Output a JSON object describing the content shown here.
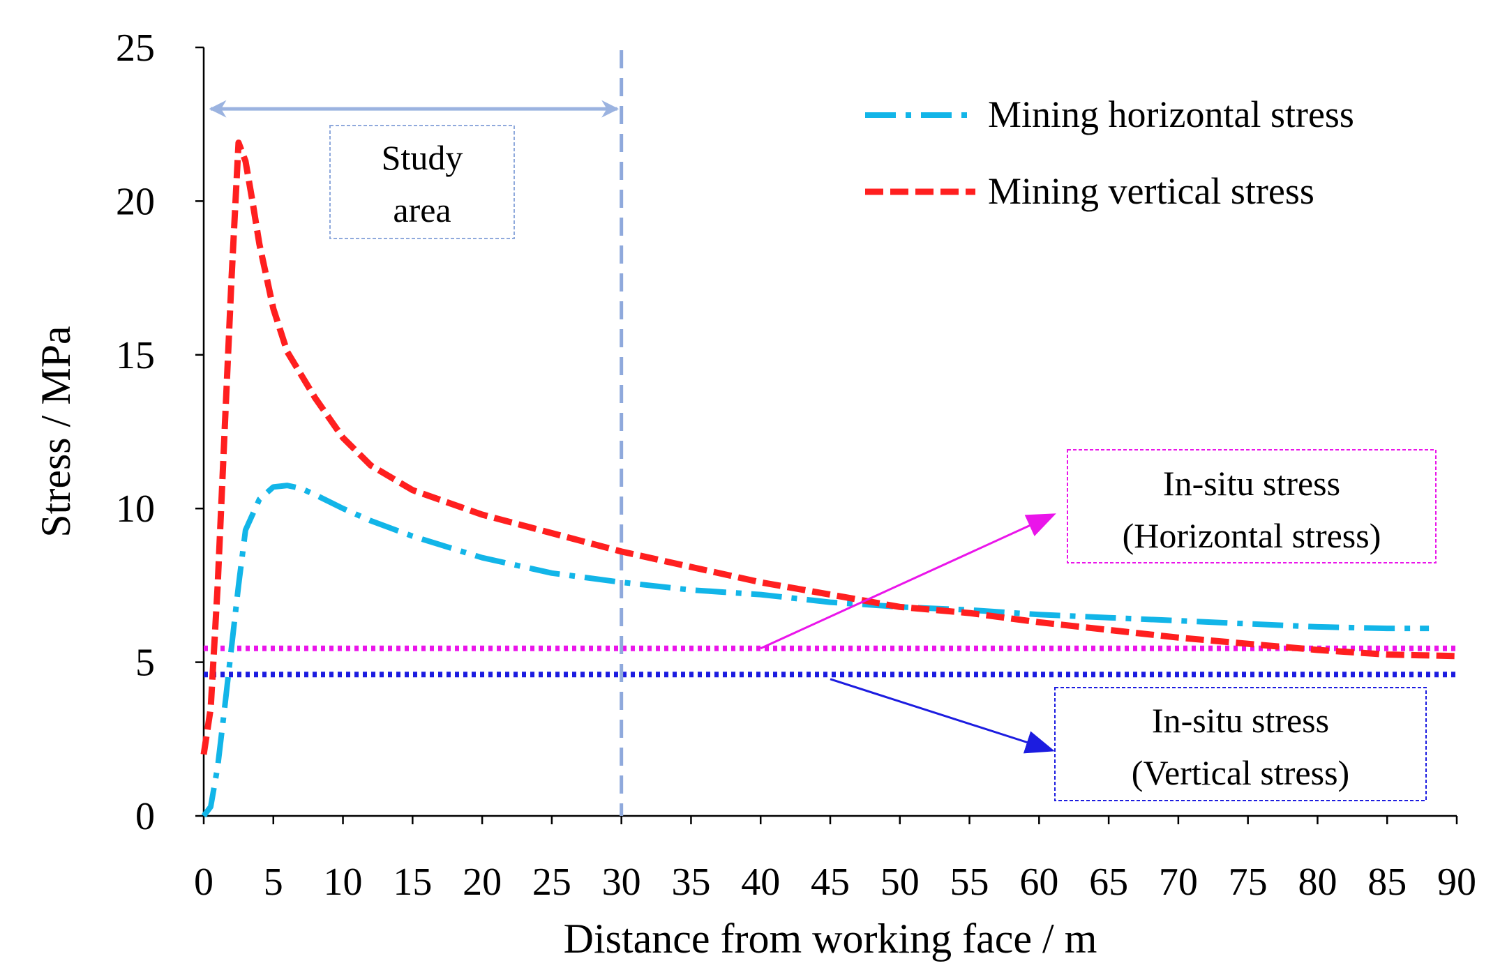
{
  "chart_data": {
    "type": "line",
    "xlabel": "Distance from working face / m",
    "ylabel": "Stress / MPa",
    "xlim": [
      0,
      90
    ],
    "ylim": [
      0,
      25
    ],
    "x_ticks": [
      0,
      5,
      10,
      15,
      20,
      25,
      30,
      35,
      40,
      45,
      50,
      55,
      60,
      65,
      70,
      75,
      80,
      85,
      90
    ],
    "y_ticks": [
      0,
      5,
      10,
      15,
      20,
      25
    ],
    "legend_position": "top-right",
    "series": [
      {
        "name": "Mining horizontal stress",
        "style": "dash-dot",
        "color": "#12b5e8",
        "points": [
          [
            0,
            0
          ],
          [
            0.5,
            0.3
          ],
          [
            1,
            1.6
          ],
          [
            1.5,
            3.5
          ],
          [
            2,
            5.5
          ],
          [
            2.5,
            7.5
          ],
          [
            3,
            9.3
          ],
          [
            4,
            10.3
          ],
          [
            5,
            10.7
          ],
          [
            6,
            10.75
          ],
          [
            7,
            10.65
          ],
          [
            8,
            10.45
          ],
          [
            10,
            10.0
          ],
          [
            12,
            9.6
          ],
          [
            15,
            9.1
          ],
          [
            20,
            8.4
          ],
          [
            25,
            7.9
          ],
          [
            30,
            7.6
          ],
          [
            35,
            7.35
          ],
          [
            40,
            7.2
          ],
          [
            45,
            6.95
          ],
          [
            50,
            6.8
          ],
          [
            55,
            6.7
          ],
          [
            60,
            6.55
          ],
          [
            65,
            6.45
          ],
          [
            70,
            6.35
          ],
          [
            75,
            6.25
          ],
          [
            80,
            6.15
          ],
          [
            85,
            6.1
          ],
          [
            88,
            6.1
          ]
        ]
      },
      {
        "name": "Mining vertical stress",
        "style": "dashed",
        "color": "#ff1f1f",
        "points": [
          [
            0,
            2.0
          ],
          [
            0.5,
            3.5
          ],
          [
            1,
            7.5
          ],
          [
            1.5,
            12.5
          ],
          [
            2,
            17.5
          ],
          [
            2.5,
            21.9
          ],
          [
            3,
            21.3
          ],
          [
            3.5,
            20.0
          ],
          [
            4,
            18.6
          ],
          [
            5,
            16.5
          ],
          [
            6,
            15.1
          ],
          [
            8,
            13.6
          ],
          [
            10,
            12.3
          ],
          [
            12,
            11.4
          ],
          [
            15,
            10.6
          ],
          [
            20,
            9.8
          ],
          [
            25,
            9.2
          ],
          [
            30,
            8.6
          ],
          [
            35,
            8.1
          ],
          [
            40,
            7.6
          ],
          [
            45,
            7.2
          ],
          [
            50,
            6.8
          ],
          [
            55,
            6.6
          ],
          [
            60,
            6.3
          ],
          [
            65,
            6.05
          ],
          [
            70,
            5.8
          ],
          [
            75,
            5.6
          ],
          [
            80,
            5.4
          ],
          [
            85,
            5.25
          ],
          [
            90,
            5.2
          ]
        ]
      }
    ],
    "reference_lines": [
      {
        "name": "In-situ horizontal stress",
        "value": 5.45,
        "color": "#ea15ea"
      },
      {
        "name": "In-situ vertical stress",
        "value": 4.6,
        "color": "#1c1ce0"
      }
    ],
    "boundary_x": 30,
    "boundary_color": "#8fa9dc",
    "annotations": {
      "study_area": {
        "line1": "Study",
        "line2": "area",
        "from_x": 0,
        "to_x": 30,
        "y": 23
      },
      "insitu_horizontal": {
        "line1": "In-situ stress",
        "line2": "(Horizontal stress)",
        "pointer_from": [
          40,
          5.45
        ]
      },
      "insitu_vertical": {
        "line1": "In-situ stress",
        "line2": "(Vertical stress)",
        "pointer_from": [
          45,
          4.45
        ]
      }
    }
  }
}
